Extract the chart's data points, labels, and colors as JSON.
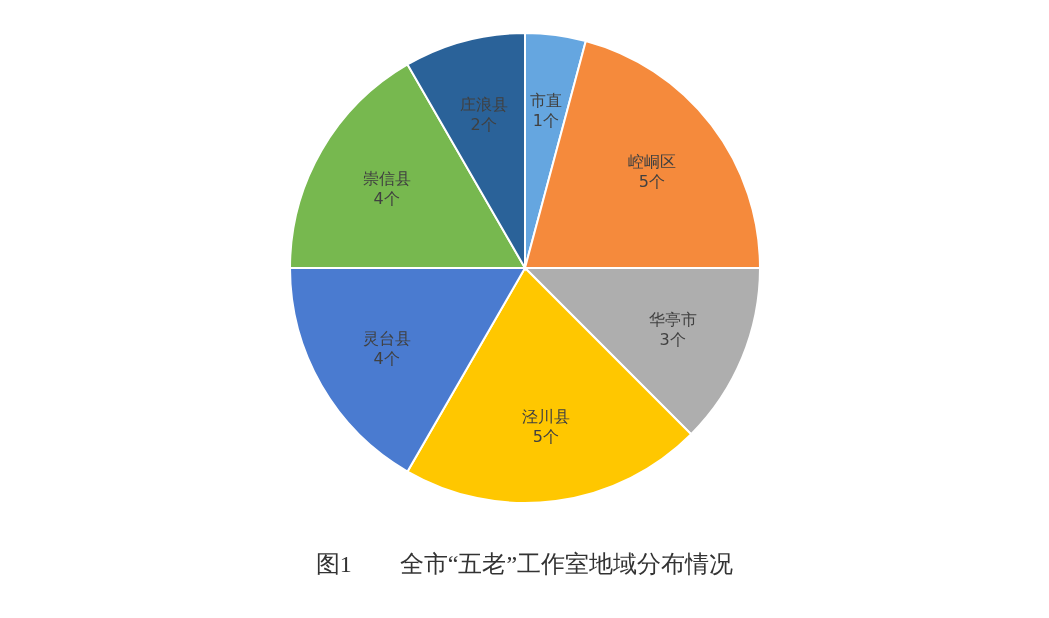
{
  "chart_data": {
    "type": "pie",
    "title": "图1　　全市“五老”工作室地域分布情况",
    "categories": [
      "市直",
      "崆峒区",
      "华亭市",
      "泾川县",
      "灵台县",
      "崇信县",
      "庄浪县"
    ],
    "values": [
      1,
      5,
      3,
      5,
      4,
      4,
      2
    ],
    "value_labels": [
      "1个",
      "5个",
      "3个",
      "5个",
      "4个",
      "4个",
      "2个"
    ],
    "colors": [
      "#65a6e0",
      "#f58a3c",
      "#aeaeae",
      "#ffc700",
      "#4a7bd0",
      "#77b84f",
      "#2a6299"
    ]
  }
}
